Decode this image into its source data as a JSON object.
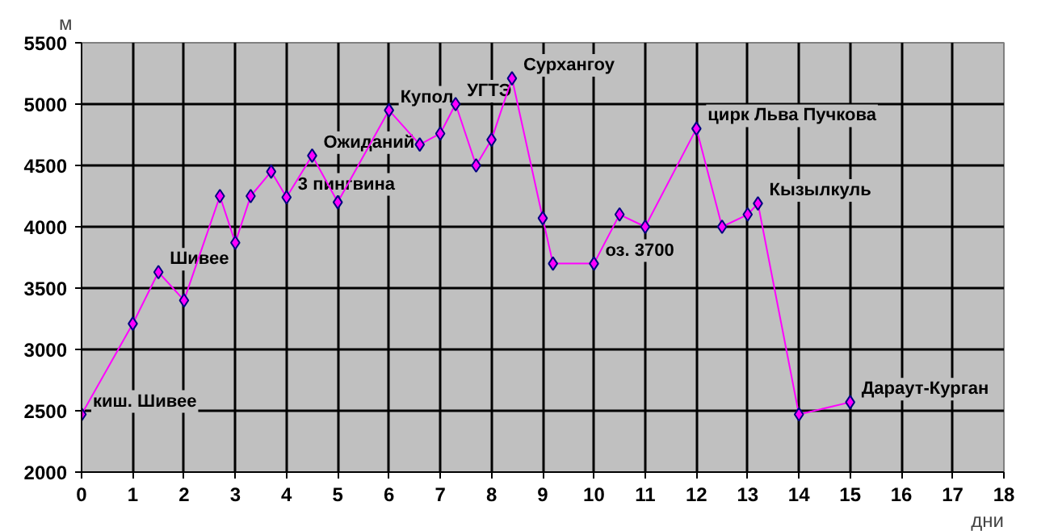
{
  "chart_data": {
    "type": "line",
    "xlabel": "дни",
    "ylabel": "м",
    "x": [
      0,
      1,
      1.5,
      2,
      2.7,
      3,
      3.3,
      3.7,
      4,
      4.5,
      5,
      6,
      6.6,
      7,
      7.3,
      7.7,
      8,
      8.4,
      9,
      9.2,
      10,
      10.5,
      11,
      12,
      12.5,
      13,
      13.2,
      14,
      15
    ],
    "series": [
      {
        "color": "#ff00ff",
        "values": [
          2470,
          3210,
          3630,
          3400,
          4250,
          3870,
          4250,
          4450,
          4240,
          4580,
          4200,
          4950,
          4670,
          4760,
          5000,
          4500,
          4710,
          5210,
          4070,
          3700,
          3700,
          4100,
          4000,
          4800,
          4000,
          4100,
          4190,
          2470,
          2570
        ]
      }
    ],
    "xlim": [
      0,
      18
    ],
    "xticks": [
      0,
      1,
      2,
      3,
      4,
      5,
      6,
      7,
      8,
      9,
      10,
      11,
      12,
      13,
      14,
      15,
      16,
      17,
      18
    ],
    "ylim": [
      2000,
      5500
    ],
    "yticks": [
      2000,
      2500,
      3000,
      3500,
      4000,
      4500,
      5000,
      5500
    ],
    "grid": true,
    "marker": "diamond",
    "annotations": [
      {
        "text": "киш. Шивее",
        "x": 0,
        "y": 2470
      },
      {
        "text": "Шивее",
        "x": 1.5,
        "y": 3630
      },
      {
        "text": "3 пингвина",
        "x": 4,
        "y": 4240
      },
      {
        "text": "Ожиданий",
        "x": 4.5,
        "y": 4580
      },
      {
        "text": "Купол",
        "x": 6,
        "y": 4950
      },
      {
        "text": "УГТЭ",
        "x": 7.3,
        "y": 5000
      },
      {
        "text": "Сурхангоу",
        "x": 8.4,
        "y": 5210
      },
      {
        "text": "оз. 3700",
        "x": 10,
        "y": 3700
      },
      {
        "text": "цирк Льва Пучкова",
        "x": 12,
        "y": 4800
      },
      {
        "text": "Кызылкуль",
        "x": 13.2,
        "y": 4190
      },
      {
        "text": "Дараут-Курган",
        "x": 15,
        "y": 2570
      }
    ]
  }
}
